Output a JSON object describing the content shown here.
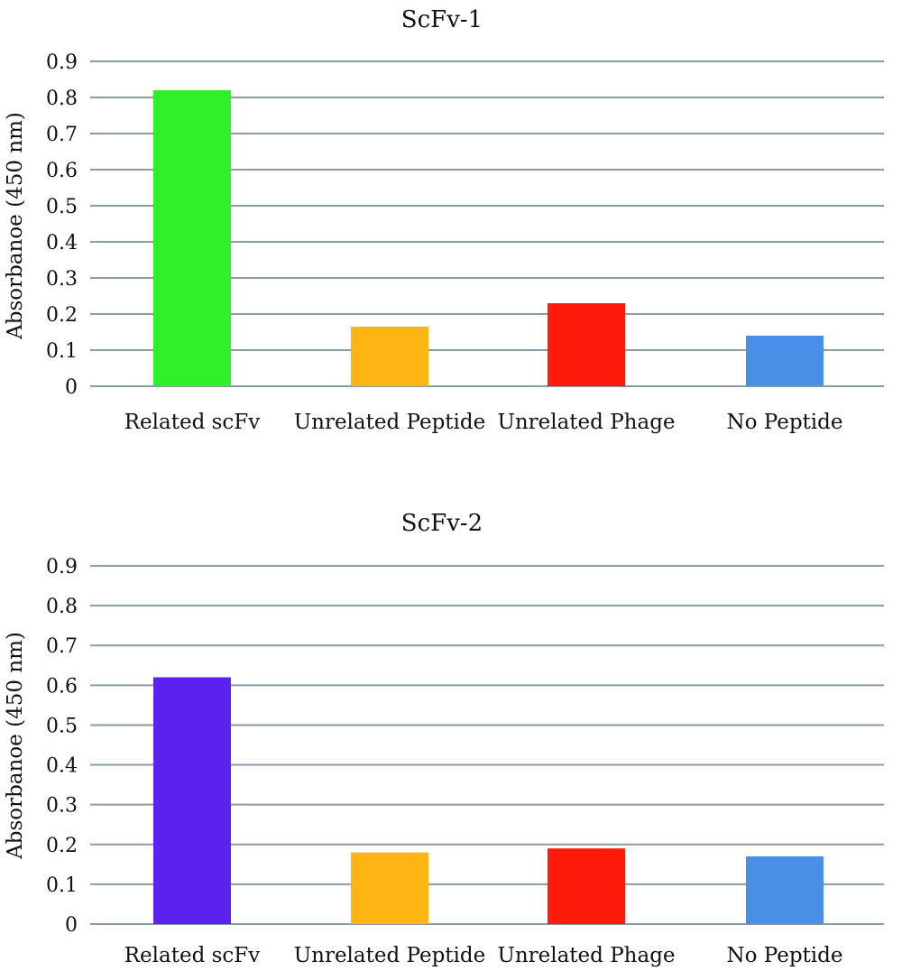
{
  "chart_data": [
    {
      "type": "bar",
      "title": "ScFv-1",
      "xlabel": "",
      "ylabel": "Absorbanoe (450 nm)",
      "categories": [
        "Related scFv",
        "Unrelated Peptide",
        "Unrelated Phage",
        "No Peptide"
      ],
      "values": [
        0.82,
        0.165,
        0.23,
        0.14
      ],
      "colors": [
        "#2ef028",
        "#ffb514",
        "#ff1a0a",
        "#4a8fe6"
      ],
      "ylim": [
        0,
        0.9
      ],
      "yticks": [
        "0",
        "0.1",
        "0.2",
        "0.3",
        "0.4",
        "0.5",
        "0.6",
        "0.7",
        "0.8",
        "0.9"
      ],
      "grid": true
    },
    {
      "type": "bar",
      "title": "ScFv-2",
      "xlabel": "",
      "ylabel": "Absorbanoe (450 nm)",
      "categories": [
        "Related scFv",
        "Unrelated Peptide",
        "Unrelated Phage",
        "No Peptide"
      ],
      "values": [
        0.62,
        0.18,
        0.19,
        0.17
      ],
      "colors": [
        "#5c22f0",
        "#ffb514",
        "#ff1a0a",
        "#4a8fe6"
      ],
      "ylim": [
        0,
        0.9
      ],
      "yticks": [
        "0",
        "0.1",
        "0.2",
        "0.3",
        "0.4",
        "0.5",
        "0.6",
        "0.7",
        "0.8",
        "0.9"
      ],
      "grid": true
    }
  ]
}
